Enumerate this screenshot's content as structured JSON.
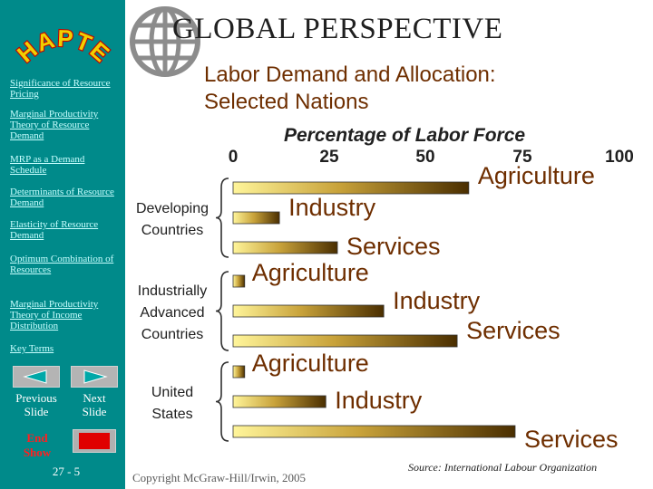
{
  "header": {
    "logo_text": "CHAPTER",
    "title": "GLOBAL  PERSPECTIVE",
    "subtitle_line1": "Labor Demand and Allocation:",
    "subtitle_line2": "Selected Nations"
  },
  "sidebar": {
    "links": [
      {
        "label": "Significance of Resource Pricing"
      },
      {
        "label": "Marginal Productivity Theory of Resource Demand"
      },
      {
        "label": "MRP as a Demand Schedule"
      },
      {
        "label": "Determinants of Resource Demand"
      },
      {
        "label": "Elasticity of Resource Demand"
      },
      {
        "label": "Optimum Combination of Resources"
      },
      {
        "label": "Marginal Productivity Theory of Income Distribution"
      },
      {
        "label": "Key Terms"
      }
    ],
    "previous_line1": "Previous",
    "previous_line2": "Slide",
    "next_line1": "Next",
    "next_line2": "Slide",
    "end_line1": "End",
    "end_line2": "Show",
    "page_number": "27 - 5"
  },
  "chart_data": {
    "type": "bar",
    "orientation": "horizontal",
    "xlabel": "Percentage of Labor Force",
    "xlim": [
      0,
      100
    ],
    "ticks": [
      "0",
      "25",
      "50",
      "75",
      "100"
    ],
    "groups": [
      {
        "label_line1": "Developing",
        "label_line2": "Countries",
        "label_line3": "",
        "bars": [
          {
            "label": "Agriculture",
            "value": 61
          },
          {
            "label": "Industry",
            "value": 12
          },
          {
            "label": "Services",
            "value": 27
          }
        ]
      },
      {
        "label_line1": "Industrially",
        "label_line2": "Advanced",
        "label_line3": "Countries",
        "bars": [
          {
            "label": "Agriculture",
            "value": 3
          },
          {
            "label": "Industry",
            "value": 39
          },
          {
            "label": "Services",
            "value": 58
          }
        ]
      },
      {
        "label_line1": "United",
        "label_line2": "States",
        "label_line3": "",
        "bars": [
          {
            "label": "Agriculture",
            "value": 3
          },
          {
            "label": "Industry",
            "value": 24
          },
          {
            "label": "Services",
            "value": 73
          }
        ]
      }
    ]
  },
  "footer": {
    "copyright": "Copyright McGraw-Hill/Irwin, 2005",
    "source": "Source: International Labour Organization"
  },
  "colors": {
    "sidebar": "#008a8a",
    "bar_start": "#fff59a",
    "bar_mid": "#c8a23a",
    "bar_end": "#4a2e00",
    "bar_label": "#6e2e00",
    "end_button": "#ff2020"
  }
}
